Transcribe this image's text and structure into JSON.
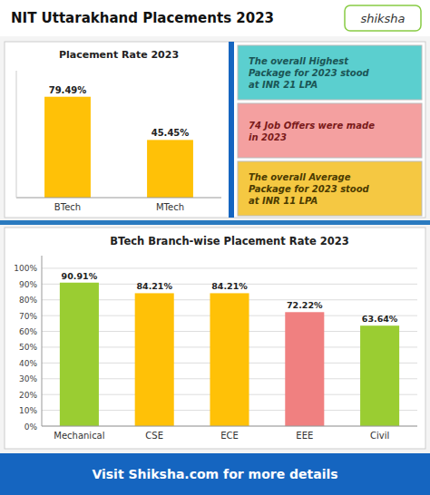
{
  "chart_data": [
    {
      "type": "bar",
      "title": "Placement Rate 2023",
      "categories": [
        "BTech",
        "MTech"
      ],
      "values": [
        79.49,
        45.45
      ],
      "value_labels": [
        "79.49%",
        "45.45%"
      ],
      "color": "#FFC107",
      "ylim": [
        0,
        100
      ],
      "data_labels": true,
      "tick_labels": "x",
      "annotations": [
        "NIT Uttarakhand Placements 2023",
        "shiksha",
        "The overall Highest\nPackage for 2023 stood\nat INR 21 LPA",
        "74 Job Offers were made\nin 2023",
        "The overall Average\nPackage for 2023 stood\nat INR 11 LPA",
        "Visit Shiksha.com for more details"
      ]
    },
    {
      "type": "bar",
      "title": "BTech Branch-wise Placement Rate 2023",
      "categories": [
        "Mechanical",
        "CSE",
        "ECE",
        "EEE",
        "Civil"
      ],
      "values": [
        90.91,
        84.21,
        84.21,
        72.22,
        63.64
      ],
      "value_labels": [
        "90.91%",
        "84.21%",
        "84.21%",
        "72.22%",
        "63.64%"
      ],
      "colors": [
        "#9ACD32",
        "#FFC107",
        "#FFC107",
        "#F08080",
        "#9ACD32"
      ],
      "ylim": [
        0,
        108
      ],
      "yticks": [
        {
          "value": 0,
          "label": "0%"
        },
        {
          "value": 10,
          "label": "10%"
        },
        {
          "value": 20,
          "label": "20%"
        },
        {
          "value": 30,
          "label": "30%"
        },
        {
          "value": 40,
          "label": "40%"
        },
        {
          "value": 50,
          "label": "50%"
        },
        {
          "value": 60,
          "label": "60%"
        },
        {
          "value": 70,
          "label": "70%"
        },
        {
          "value": 80,
          "label": "80%"
        },
        {
          "value": 90,
          "label": "90%"
        },
        {
          "value": 100,
          "label": "100%"
        }
      ],
      "grid": true,
      "data_labels": true
    }
  ]
}
